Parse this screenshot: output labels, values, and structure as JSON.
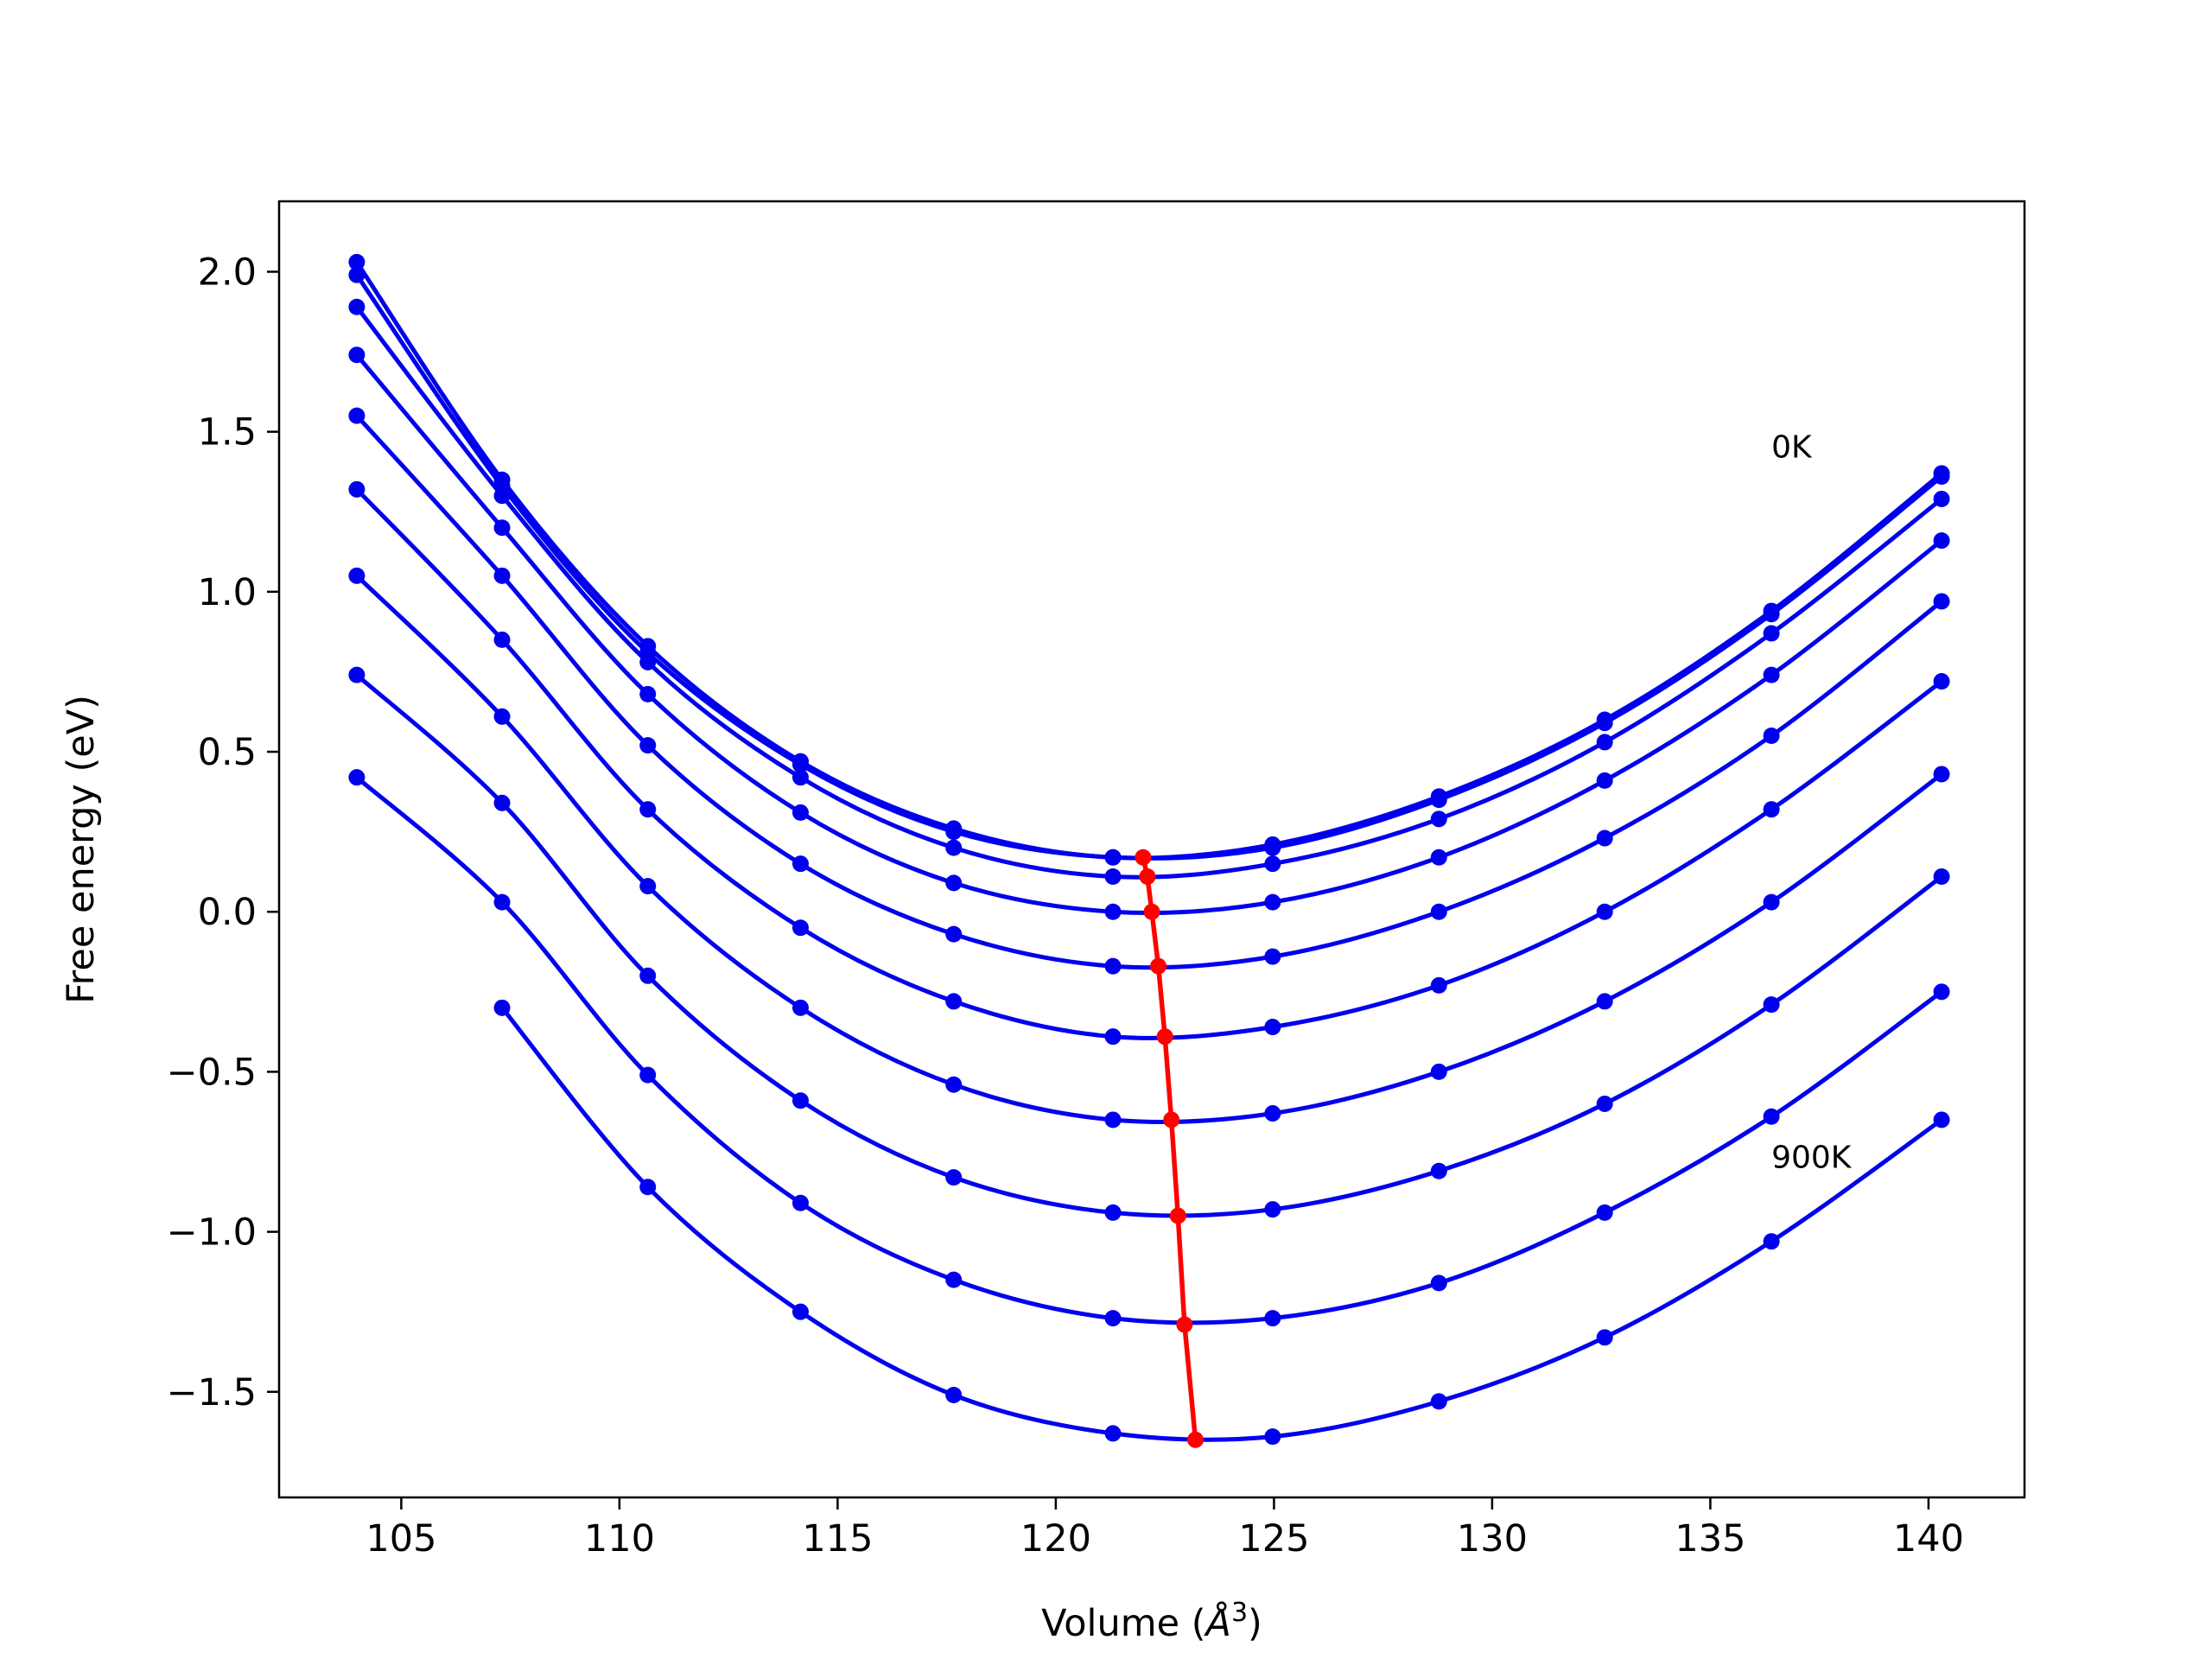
{
  "chart_data": {
    "type": "line",
    "title": "",
    "xlabel": "Volume (Å³)",
    "xlabel_parts": {
      "main": "Volume (",
      "symbol": "Å",
      "exponent": "3",
      "close": ")"
    },
    "ylabel": "Free energy (eV)",
    "xlim": [
      102.2,
      142.2
    ],
    "ylim": [
      -1.83,
      2.22
    ],
    "xticks": [
      105,
      110,
      115,
      120,
      125,
      130,
      135,
      140
    ],
    "xtick_labels": [
      "105",
      "110",
      "115",
      "120",
      "125",
      "130",
      "135",
      "140"
    ],
    "yticks": [
      -1.5,
      -1.0,
      -0.5,
      0.0,
      0.5,
      1.0,
      1.5,
      2.0
    ],
    "ytick_labels": [
      "−1.5",
      "−1.0",
      "−0.5",
      "0.0",
      "0.5",
      "1.0",
      "1.5",
      "2.0"
    ],
    "grid": false,
    "colors": {
      "curves": "#0000ee",
      "minimum_line": "#ff0000",
      "axes": "#000000"
    },
    "x": [
      103.98,
      107.31,
      110.65,
      114.15,
      117.66,
      121.31,
      124.97,
      128.78,
      132.58,
      136.4,
      140.3
    ],
    "series": [
      {
        "fit": [
          0.0,
          122.0,
          0.17
        ],
        "values": [
          2.03,
          1.35,
          0.83,
          0.47,
          0.26,
          0.17,
          0.21,
          0.36,
          0.6,
          0.94,
          1.37
        ]
      },
      {
        "fit": [
          0.0,
          122.0,
          0.17
        ],
        "values": [
          1.99,
          1.33,
          0.81,
          0.46,
          0.25,
          0.17,
          0.2,
          0.35,
          0.59,
          0.93,
          1.36
        ]
      },
      {
        "fit": [
          0.0,
          122.1,
          0.11
        ],
        "values": [
          1.89,
          1.3,
          0.78,
          0.42,
          0.2,
          0.11,
          0.15,
          0.29,
          0.53,
          0.87,
          1.29
        ]
      },
      {
        "fit": [
          0.0,
          122.2,
          0.0
        ],
        "values": [
          1.74,
          1.2,
          0.68,
          0.31,
          0.09,
          0.0,
          0.03,
          0.17,
          0.41,
          0.74,
          1.16
        ]
      },
      {
        "fit": [
          0.0,
          122.35,
          -0.17
        ],
        "values": [
          1.55,
          1.05,
          0.52,
          0.15,
          -0.07,
          -0.17,
          -0.14,
          0.0,
          0.23,
          0.55,
          0.97
        ]
      },
      {
        "fit": [
          0.0,
          122.5,
          -0.39
        ],
        "values": [
          1.32,
          0.85,
          0.32,
          -0.05,
          -0.28,
          -0.39,
          -0.36,
          -0.23,
          0.0,
          0.32,
          0.72
        ]
      },
      {
        "fit": [
          0.0,
          122.65,
          -0.65
        ],
        "values": [
          1.05,
          0.61,
          0.08,
          -0.3,
          -0.54,
          -0.65,
          -0.63,
          -0.5,
          -0.28,
          0.03,
          0.43
        ]
      },
      {
        "fit": [
          0.0,
          122.8,
          -0.95
        ],
        "values": [
          0.74,
          0.34,
          -0.2,
          -0.59,
          -0.83,
          -0.94,
          -0.93,
          -0.81,
          -0.6,
          -0.29,
          0.11
        ]
      },
      {
        "fit": [
          0.0,
          122.95,
          -1.29
        ],
        "values": [
          0.42,
          0.03,
          -0.51,
          -0.91,
          -1.15,
          -1.27,
          -1.27,
          -1.16,
          -0.94,
          -0.64,
          -0.25
        ]
      },
      {
        "fit": [
          0.0,
          123.2,
          -1.65
        ],
        "values": [
          null,
          -0.3,
          -0.86,
          -1.25,
          -1.51,
          -1.63,
          -1.64,
          -1.53,
          -1.33,
          -1.03,
          -0.65
        ]
      }
    ],
    "minimum_line": {
      "x": [
        122.0,
        122.1,
        122.2,
        122.35,
        122.5,
        122.65,
        122.8,
        122.95,
        123.2
      ],
      "y": [
        0.17,
        0.11,
        0.0,
        -0.17,
        -0.39,
        -0.65,
        -0.95,
        -1.29,
        -1.65
      ]
    },
    "annotations": [
      {
        "text": "0K",
        "x": 136.4,
        "y": 1.42
      },
      {
        "text": "900K",
        "x": 136.4,
        "y": -0.8
      }
    ]
  }
}
